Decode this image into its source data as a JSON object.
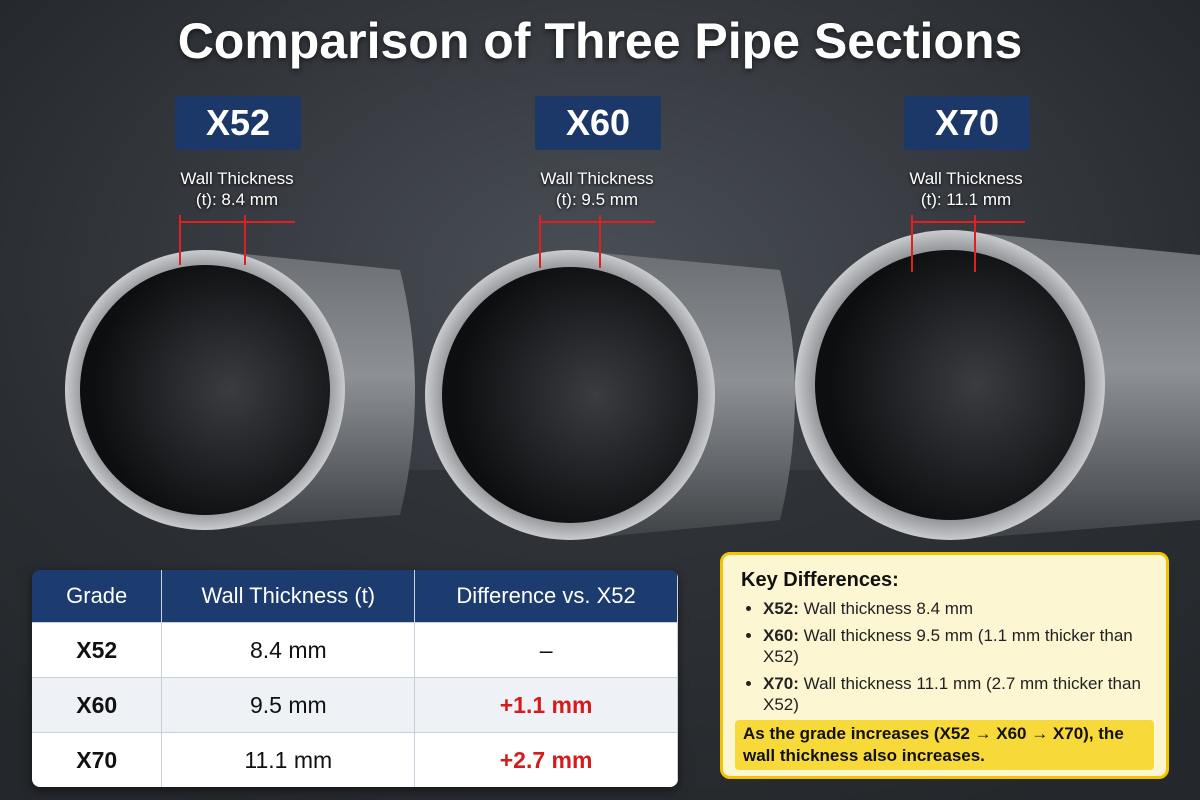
{
  "title": "Comparison of Three Pipe Sections",
  "pipes": [
    {
      "grade": "X52",
      "label_line1": "Wall Thickness",
      "label_line2": "(t): 8.4 mm"
    },
    {
      "grade": "X60",
      "label_line1": "Wall Thickness",
      "label_line2": "(t): 9.5 mm"
    },
    {
      "grade": "X70",
      "label_line1": "Wall Thickness",
      "label_line2": "(t): 11.1 mm"
    }
  ],
  "table": {
    "header": [
      "Grade",
      "Wall Thickness (t)",
      "Difference vs. X52"
    ],
    "rows": [
      [
        "X52",
        "8.4 mm",
        "–"
      ],
      [
        "X60",
        "9.5 mm",
        "+1.1 mm"
      ],
      [
        "X70",
        "11.1 mm",
        "+2.7 mm"
      ]
    ]
  },
  "key_differences": {
    "title": "Key Differences:",
    "items": [
      {
        "grade": "X52:",
        "text": "Wall thickness 8.4 mm"
      },
      {
        "grade": "X60:",
        "text": "Wall thickness 9.5 mm (1.1 mm thicker than X52)"
      },
      {
        "grade": "X70:",
        "text": "Wall thickness 11.1 mm (2.7 mm thicker than X52)"
      }
    ],
    "note": "As the grade increases (X52 → X60 → X70), the wall thickness also increases."
  }
}
